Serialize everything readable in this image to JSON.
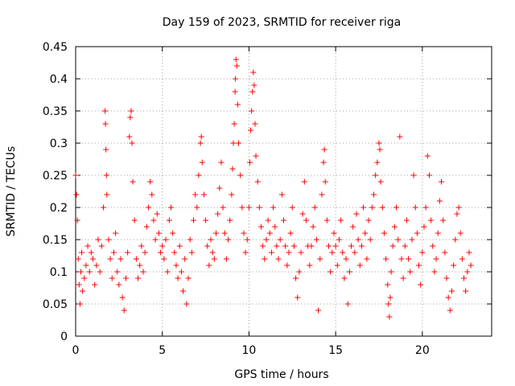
{
  "chart_data": {
    "type": "scatter",
    "title": "Day 159 of 2023, SRMTID for receiver riga",
    "xlabel": "GPS time / hours",
    "ylabel": "SRMTID / TECUs",
    "xlim": [
      0,
      24
    ],
    "ylim": [
      0,
      0.45
    ],
    "xticks": [
      0,
      5,
      10,
      15,
      20
    ],
    "yticks": [
      0,
      0.05,
      0.1,
      0.15,
      0.2,
      0.25,
      0.3,
      0.35,
      0.4,
      0.45
    ],
    "grid": true,
    "marker": "+",
    "series": [
      {
        "name": "SRMTID",
        "color": "#ff0000",
        "points": [
          [
            0.0,
            0.25
          ],
          [
            0.05,
            0.22
          ],
          [
            0.1,
            0.18
          ],
          [
            0.15,
            0.12
          ],
          [
            0.2,
            0.08
          ],
          [
            0.25,
            0.05
          ],
          [
            0.3,
            0.1
          ],
          [
            0.35,
            0.13
          ],
          [
            0.4,
            0.07
          ],
          [
            0.5,
            0.09
          ],
          [
            0.6,
            0.11
          ],
          [
            0.7,
            0.14
          ],
          [
            0.8,
            0.1
          ],
          [
            0.9,
            0.13
          ],
          [
            1.0,
            0.12
          ],
          [
            1.1,
            0.08
          ],
          [
            1.2,
            0.11
          ],
          [
            1.3,
            0.15
          ],
          [
            1.4,
            0.1
          ],
          [
            1.5,
            0.14
          ],
          [
            1.6,
            0.2
          ],
          [
            1.7,
            0.35
          ],
          [
            1.72,
            0.33
          ],
          [
            1.75,
            0.29
          ],
          [
            1.78,
            0.25
          ],
          [
            1.8,
            0.22
          ],
          [
            1.9,
            0.15
          ],
          [
            2.0,
            0.12
          ],
          [
            2.1,
            0.09
          ],
          [
            2.2,
            0.13
          ],
          [
            2.3,
            0.16
          ],
          [
            2.4,
            0.1
          ],
          [
            2.5,
            0.08
          ],
          [
            2.6,
            0.12
          ],
          [
            2.7,
            0.06
          ],
          [
            2.8,
            0.04
          ],
          [
            2.9,
            0.09
          ],
          [
            3.0,
            0.13
          ],
          [
            3.1,
            0.31
          ],
          [
            3.15,
            0.34
          ],
          [
            3.2,
            0.35
          ],
          [
            3.25,
            0.3
          ],
          [
            3.3,
            0.24
          ],
          [
            3.4,
            0.18
          ],
          [
            3.5,
            0.12
          ],
          [
            3.6,
            0.09
          ],
          [
            3.7,
            0.11
          ],
          [
            3.8,
            0.14
          ],
          [
            3.9,
            0.1
          ],
          [
            4.0,
            0.13
          ],
          [
            4.1,
            0.17
          ],
          [
            4.2,
            0.2
          ],
          [
            4.3,
            0.24
          ],
          [
            4.4,
            0.22
          ],
          [
            4.5,
            0.18
          ],
          [
            4.6,
            0.15
          ],
          [
            4.7,
            0.19
          ],
          [
            4.8,
            0.16
          ],
          [
            4.9,
            0.13
          ],
          [
            5.0,
            0.14
          ],
          [
            5.1,
            0.12
          ],
          [
            5.2,
            0.15
          ],
          [
            5.3,
            0.1
          ],
          [
            5.4,
            0.18
          ],
          [
            5.5,
            0.2
          ],
          [
            5.6,
            0.16
          ],
          [
            5.7,
            0.13
          ],
          [
            5.8,
            0.11
          ],
          [
            5.9,
            0.09
          ],
          [
            6.0,
            0.14
          ],
          [
            6.1,
            0.1
          ],
          [
            6.2,
            0.07
          ],
          [
            6.3,
            0.12
          ],
          [
            6.4,
            0.05
          ],
          [
            6.5,
            0.09
          ],
          [
            6.6,
            0.15
          ],
          [
            6.7,
            0.13
          ],
          [
            6.8,
            0.18
          ],
          [
            6.9,
            0.22
          ],
          [
            7.0,
            0.2
          ],
          [
            7.1,
            0.25
          ],
          [
            7.2,
            0.3
          ],
          [
            7.25,
            0.31
          ],
          [
            7.3,
            0.27
          ],
          [
            7.4,
            0.22
          ],
          [
            7.5,
            0.18
          ],
          [
            7.6,
            0.14
          ],
          [
            7.7,
            0.11
          ],
          [
            7.8,
            0.15
          ],
          [
            7.9,
            0.13
          ],
          [
            8.0,
            0.12
          ],
          [
            8.1,
            0.16
          ],
          [
            8.2,
            0.19
          ],
          [
            8.3,
            0.23
          ],
          [
            8.4,
            0.27
          ],
          [
            8.5,
            0.2
          ],
          [
            8.6,
            0.16
          ],
          [
            8.7,
            0.12
          ],
          [
            8.8,
            0.15
          ],
          [
            8.9,
            0.18
          ],
          [
            9.0,
            0.22
          ],
          [
            9.05,
            0.26
          ],
          [
            9.1,
            0.3
          ],
          [
            9.15,
            0.33
          ],
          [
            9.2,
            0.38
          ],
          [
            9.22,
            0.4
          ],
          [
            9.25,
            0.43
          ],
          [
            9.3,
            0.42
          ],
          [
            9.35,
            0.36
          ],
          [
            9.4,
            0.3
          ],
          [
            9.5,
            0.25
          ],
          [
            9.6,
            0.2
          ],
          [
            9.7,
            0.16
          ],
          [
            9.8,
            0.13
          ],
          [
            9.9,
            0.15
          ],
          [
            10.0,
            0.2
          ],
          [
            10.05,
            0.27
          ],
          [
            10.1,
            0.32
          ],
          [
            10.15,
            0.35
          ],
          [
            10.2,
            0.38
          ],
          [
            10.25,
            0.41
          ],
          [
            10.3,
            0.39
          ],
          [
            10.35,
            0.33
          ],
          [
            10.4,
            0.28
          ],
          [
            10.5,
            0.24
          ],
          [
            10.6,
            0.2
          ],
          [
            10.7,
            0.17
          ],
          [
            10.8,
            0.14
          ],
          [
            10.9,
            0.12
          ],
          [
            11.0,
            0.15
          ],
          [
            11.1,
            0.18
          ],
          [
            11.2,
            0.16
          ],
          [
            11.3,
            0.13
          ],
          [
            11.4,
            0.2
          ],
          [
            11.5,
            0.17
          ],
          [
            11.6,
            0.14
          ],
          [
            11.7,
            0.12
          ],
          [
            11.8,
            0.15
          ],
          [
            11.9,
            0.22
          ],
          [
            12.0,
            0.18
          ],
          [
            12.1,
            0.14
          ],
          [
            12.2,
            0.11
          ],
          [
            12.3,
            0.13
          ],
          [
            12.4,
            0.16
          ],
          [
            12.5,
            0.2
          ],
          [
            12.6,
            0.14
          ],
          [
            12.7,
            0.09
          ],
          [
            12.8,
            0.06
          ],
          [
            12.9,
            0.1
          ],
          [
            13.0,
            0.13
          ],
          [
            13.1,
            0.19
          ],
          [
            13.2,
            0.24
          ],
          [
            13.3,
            0.18
          ],
          [
            13.4,
            0.14
          ],
          [
            13.5,
            0.11
          ],
          [
            13.6,
            0.14
          ],
          [
            13.7,
            0.17
          ],
          [
            13.8,
            0.2
          ],
          [
            13.9,
            0.15
          ],
          [
            14.0,
            0.04
          ],
          [
            14.1,
            0.12
          ],
          [
            14.2,
            0.22
          ],
          [
            14.3,
            0.27
          ],
          [
            14.35,
            0.29
          ],
          [
            14.4,
            0.24
          ],
          [
            14.5,
            0.18
          ],
          [
            14.6,
            0.14
          ],
          [
            14.7,
            0.1
          ],
          [
            14.8,
            0.13
          ],
          [
            14.9,
            0.16
          ],
          [
            15.0,
            0.14
          ],
          [
            15.1,
            0.11
          ],
          [
            15.2,
            0.15
          ],
          [
            15.3,
            0.18
          ],
          [
            15.4,
            0.13
          ],
          [
            15.5,
            0.09
          ],
          [
            15.6,
            0.12
          ],
          [
            15.7,
            0.05
          ],
          [
            15.8,
            0.1
          ],
          [
            15.9,
            0.14
          ],
          [
            16.0,
            0.17
          ],
          [
            16.1,
            0.13
          ],
          [
            16.2,
            0.19
          ],
          [
            16.3,
            0.15
          ],
          [
            16.4,
            0.11
          ],
          [
            16.5,
            0.14
          ],
          [
            16.6,
            0.2
          ],
          [
            16.7,
            0.16
          ],
          [
            16.8,
            0.12
          ],
          [
            16.9,
            0.18
          ],
          [
            17.0,
            0.15
          ],
          [
            17.1,
            0.2
          ],
          [
            17.2,
            0.22
          ],
          [
            17.3,
            0.25
          ],
          [
            17.4,
            0.27
          ],
          [
            17.5,
            0.3
          ],
          [
            17.55,
            0.29
          ],
          [
            17.6,
            0.24
          ],
          [
            17.7,
            0.2
          ],
          [
            17.8,
            0.16
          ],
          [
            17.9,
            0.12
          ],
          [
            18.0,
            0.08
          ],
          [
            18.05,
            0.05
          ],
          [
            18.1,
            0.03
          ],
          [
            18.15,
            0.06
          ],
          [
            18.2,
            0.1
          ],
          [
            18.3,
            0.14
          ],
          [
            18.4,
            0.17
          ],
          [
            18.5,
            0.2
          ],
          [
            18.6,
            0.15
          ],
          [
            18.7,
            0.31
          ],
          [
            18.8,
            0.12
          ],
          [
            18.9,
            0.09
          ],
          [
            19.0,
            0.14
          ],
          [
            19.1,
            0.18
          ],
          [
            19.2,
            0.12
          ],
          [
            19.3,
            0.1
          ],
          [
            19.4,
            0.15
          ],
          [
            19.5,
            0.25
          ],
          [
            19.6,
            0.2
          ],
          [
            19.7,
            0.16
          ],
          [
            19.8,
            0.11
          ],
          [
            19.9,
            0.08
          ],
          [
            20.0,
            0.13
          ],
          [
            20.1,
            0.17
          ],
          [
            20.2,
            0.2
          ],
          [
            20.3,
            0.28
          ],
          [
            20.4,
            0.25
          ],
          [
            20.5,
            0.18
          ],
          [
            20.6,
            0.14
          ],
          [
            20.7,
            0.1
          ],
          [
            20.8,
            0.12
          ],
          [
            20.9,
            0.16
          ],
          [
            21.0,
            0.21
          ],
          [
            21.1,
            0.24
          ],
          [
            21.2,
            0.18
          ],
          [
            21.3,
            0.13
          ],
          [
            21.4,
            0.09
          ],
          [
            21.5,
            0.06
          ],
          [
            21.6,
            0.04
          ],
          [
            21.7,
            0.07
          ],
          [
            21.8,
            0.11
          ],
          [
            21.9,
            0.15
          ],
          [
            22.0,
            0.19
          ],
          [
            22.1,
            0.2
          ],
          [
            22.2,
            0.16
          ],
          [
            22.3,
            0.12
          ],
          [
            22.4,
            0.09
          ],
          [
            22.5,
            0.07
          ],
          [
            22.6,
            0.1
          ],
          [
            22.7,
            0.13
          ],
          [
            22.8,
            0.11
          ]
        ]
      }
    ]
  }
}
